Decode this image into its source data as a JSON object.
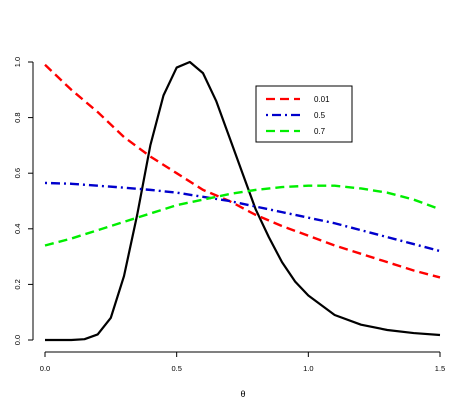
{
  "chart_data": {
    "type": "line",
    "title": "",
    "xlabel": "θ",
    "ylabel": "",
    "xlim": [
      0,
      1.5
    ],
    "ylim": [
      0,
      1
    ],
    "x_ticks": [
      "0.0",
      "0.5",
      "1.0",
      "1.5"
    ],
    "y_ticks": [
      "0.0",
      "0.2",
      "0.4",
      "0.6",
      "0.8",
      "1.0"
    ],
    "grid": false,
    "legend_position": "top-right",
    "series": [
      {
        "name": "",
        "color": "#000000",
        "dash": "solid",
        "x": [
          0.0,
          0.1,
          0.15,
          0.2,
          0.25,
          0.3,
          0.35,
          0.4,
          0.45,
          0.5,
          0.55,
          0.6,
          0.65,
          0.7,
          0.75,
          0.8,
          0.85,
          0.9,
          0.95,
          1.0,
          1.1,
          1.2,
          1.3,
          1.4,
          1.5
        ],
        "values": [
          0.0,
          0.0,
          0.003,
          0.02,
          0.08,
          0.23,
          0.45,
          0.7,
          0.88,
          0.98,
          1.0,
          0.96,
          0.86,
          0.73,
          0.6,
          0.47,
          0.37,
          0.28,
          0.21,
          0.16,
          0.09,
          0.055,
          0.036,
          0.025,
          0.018
        ]
      },
      {
        "name": "0.01",
        "color": "#ff0000",
        "dash": "dashed",
        "x": [
          0.0,
          0.1,
          0.2,
          0.3,
          0.4,
          0.5,
          0.6,
          0.7,
          0.8,
          0.9,
          1.0,
          1.1,
          1.2,
          1.3,
          1.4,
          1.5
        ],
        "values": [
          0.99,
          0.9,
          0.82,
          0.73,
          0.66,
          0.6,
          0.54,
          0.5,
          0.45,
          0.41,
          0.375,
          0.34,
          0.31,
          0.28,
          0.25,
          0.225
        ]
      },
      {
        "name": "0.5",
        "color": "#0000cc",
        "dash": "dotdash",
        "x": [
          0.0,
          0.1,
          0.2,
          0.3,
          0.4,
          0.5,
          0.6,
          0.7,
          0.8,
          0.9,
          1.0,
          1.1,
          1.2,
          1.3,
          1.4,
          1.5
        ],
        "values": [
          0.565,
          0.562,
          0.555,
          0.548,
          0.54,
          0.53,
          0.515,
          0.5,
          0.48,
          0.46,
          0.44,
          0.42,
          0.395,
          0.37,
          0.345,
          0.32
        ]
      },
      {
        "name": "0.7",
        "color": "#00ee00",
        "dash": "dashed",
        "x": [
          0.0,
          0.1,
          0.2,
          0.3,
          0.4,
          0.5,
          0.6,
          0.7,
          0.8,
          0.9,
          1.0,
          1.1,
          1.2,
          1.3,
          1.4,
          1.5
        ],
        "values": [
          0.34,
          0.365,
          0.395,
          0.425,
          0.455,
          0.485,
          0.505,
          0.525,
          0.54,
          0.55,
          0.555,
          0.555,
          0.545,
          0.53,
          0.505,
          0.47
        ]
      }
    ]
  }
}
